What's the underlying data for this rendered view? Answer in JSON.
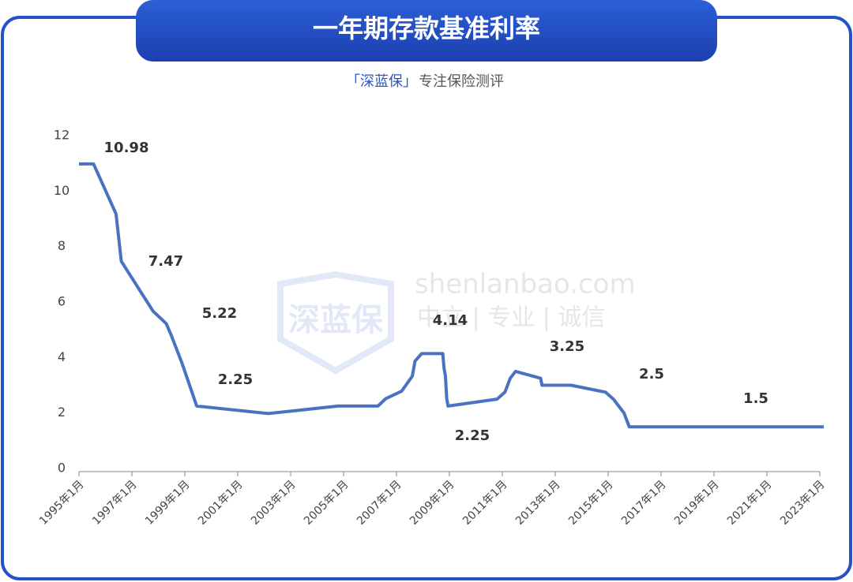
{
  "header": {
    "title": "一年期存款基准利率",
    "brand": "「深蓝保」",
    "tagline": "专注保险测评"
  },
  "watermark": {
    "logo": "深蓝保",
    "site": "shenlanbao.com",
    "motto": "中立 | 专业 | 诚信"
  },
  "chart_data": {
    "type": "line",
    "color": "#4a72c0",
    "x": [
      1995.0,
      1995.55,
      1996.4,
      1996.6,
      1997.8,
      1998.3,
      1998.5,
      1998.9,
      1999.45,
      2002.15,
      2004.8,
      2006.3,
      2006.6,
      2007.2,
      2007.4,
      2007.6,
      2007.65,
      2007.7,
      2007.95,
      2008.75,
      2008.8,
      2008.85,
      2008.9,
      2008.95,
      2010.8,
      2011.1,
      2011.3,
      2011.5,
      2012.45,
      2012.5,
      2013.6,
      2014.9,
      2015.2,
      2015.4,
      2015.6,
      2015.8,
      2023.15
    ],
    "values": [
      10.98,
      10.98,
      9.18,
      7.47,
      5.67,
      5.22,
      4.77,
      3.78,
      2.25,
      1.98,
      2.25,
      2.25,
      2.52,
      2.79,
      3.06,
      3.33,
      3.6,
      3.87,
      4.14,
      4.14,
      3.6,
      3.33,
      2.52,
      2.25,
      2.5,
      2.75,
      3.25,
      3.5,
      3.25,
      3.0,
      3.0,
      2.75,
      2.5,
      2.25,
      2.0,
      1.5,
      1.5
    ],
    "annotations": [
      10.98,
      7.47,
      5.22,
      2.25,
      4.14,
      2.25,
      3.25,
      2.5,
      1.5
    ],
    "xlim": [
      1995,
      2023.3
    ],
    "ylim": [
      0,
      12
    ],
    "yticks": [
      0,
      2,
      4,
      6,
      8,
      10,
      12
    ],
    "xticks": [
      {
        "value": 1995,
        "label": "1995年1月"
      },
      {
        "value": 1997,
        "label": "1997年1月"
      },
      {
        "value": 1999,
        "label": "1999年1月"
      },
      {
        "value": 2001,
        "label": "2001年1月"
      },
      {
        "value": 2003,
        "label": "2003年1月"
      },
      {
        "value": 2005,
        "label": "2005年1月"
      },
      {
        "value": 2007,
        "label": "2007年1月"
      },
      {
        "value": 2009,
        "label": "2009年1月"
      },
      {
        "value": 2011,
        "label": "2011年1月"
      },
      {
        "value": 2013,
        "label": "2013年1月"
      },
      {
        "value": 2015,
        "label": "2015年1月"
      },
      {
        "value": 2017,
        "label": "2017年1月"
      },
      {
        "value": 2019,
        "label": "2019年1月"
      },
      {
        "value": 2021,
        "label": "2021年1月"
      },
      {
        "value": 2023,
        "label": "2023年1月"
      }
    ]
  }
}
